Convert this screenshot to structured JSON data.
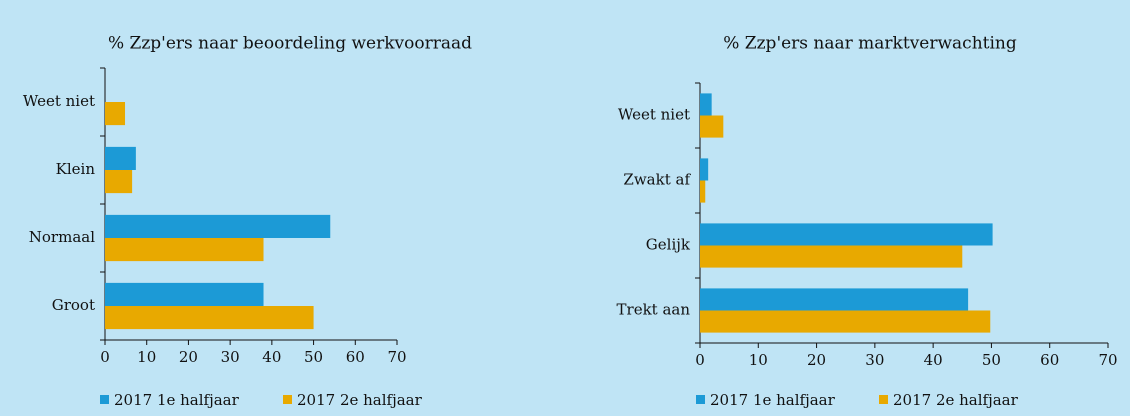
{
  "chart_data": [
    {
      "type": "bar",
      "orientation": "horizontal",
      "title": "% Zzp'ers naar beoordeling werkvoorraad",
      "categories": [
        "Weet niet",
        "Klein",
        "Normaal",
        "Groot"
      ],
      "series": [
        {
          "name": "2017 1e halfjaar",
          "color": "#1c9ad6",
          "values": [
            null,
            7.4,
            54,
            38
          ]
        },
        {
          "name": "2017 2e halfjaar",
          "color": "#e8a900",
          "values": [
            4.8,
            6.5,
            38,
            50
          ]
        }
      ],
      "xlim": [
        0,
        70
      ],
      "xticks": [
        0,
        10,
        20,
        30,
        40,
        50,
        60,
        70
      ],
      "legend": "bottom"
    },
    {
      "type": "bar",
      "orientation": "horizontal",
      "title": "% Zzp'ers naar marktverwachting",
      "categories": [
        "Weet niet",
        "Zwakt af",
        "Gelijk",
        "Trekt aan"
      ],
      "series": [
        {
          "name": "2017 1e halfjaar",
          "color": "#1c9ad6",
          "values": [
            2,
            1.4,
            50.2,
            46
          ]
        },
        {
          "name": "2017 2e halfjaar",
          "color": "#e8a900",
          "values": [
            4,
            0.9,
            45,
            49.8
          ]
        }
      ],
      "xlim": [
        0,
        70
      ],
      "xticks": [
        0,
        10,
        20,
        30,
        40,
        50,
        60,
        70
      ],
      "legend": "bottom"
    }
  ]
}
